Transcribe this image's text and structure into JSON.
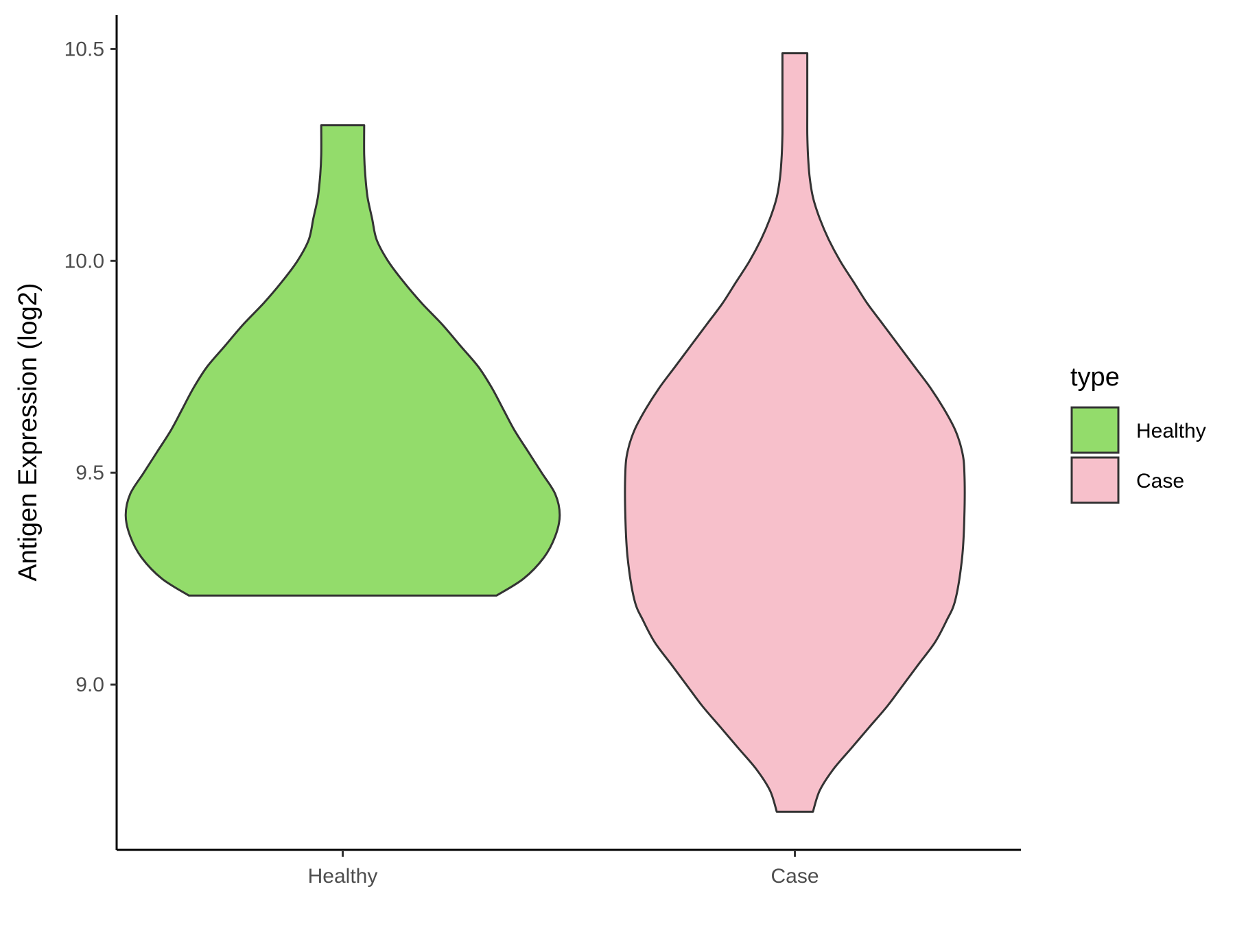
{
  "chart_data": {
    "type": "violin",
    "title": "",
    "xlabel": "",
    "ylabel": "Antigen Expression (log2)",
    "ylim": [
      8.61,
      10.58
    ],
    "yticks": [
      9.0,
      9.5,
      10.0,
      10.5
    ],
    "ytick_labels": [
      "9.0",
      "9.5",
      "10.0",
      "10.5"
    ],
    "categories": [
      "Healthy",
      "Case"
    ],
    "grid": false,
    "legend": {
      "title": "type",
      "placement": "right",
      "entries": [
        {
          "label": "Healthy",
          "color": "#93DC6B"
        },
        {
          "label": "Case",
          "color": "#F7C0CB"
        }
      ]
    },
    "series": [
      {
        "name": "Healthy",
        "color": "#93DC6B",
        "min": 9.21,
        "max": 10.32,
        "density_profile": [
          [
            9.21,
            0.68
          ],
          [
            9.25,
            0.8
          ],
          [
            9.3,
            0.89
          ],
          [
            9.35,
            0.94
          ],
          [
            9.4,
            0.96
          ],
          [
            9.45,
            0.94
          ],
          [
            9.5,
            0.88
          ],
          [
            9.55,
            0.82
          ],
          [
            9.6,
            0.76
          ],
          [
            9.65,
            0.71
          ],
          [
            9.7,
            0.66
          ],
          [
            9.75,
            0.6
          ],
          [
            9.8,
            0.52
          ],
          [
            9.85,
            0.44
          ],
          [
            9.9,
            0.35
          ],
          [
            9.95,
            0.27
          ],
          [
            10.0,
            0.2
          ],
          [
            10.05,
            0.15
          ],
          [
            10.1,
            0.13
          ],
          [
            10.15,
            0.11
          ],
          [
            10.2,
            0.1
          ],
          [
            10.25,
            0.095
          ],
          [
            10.32,
            0.095
          ]
        ]
      },
      {
        "name": "Case",
        "color": "#F7C0CB",
        "min": 8.7,
        "max": 10.49,
        "density_profile": [
          [
            8.7,
            0.08
          ],
          [
            8.75,
            0.11
          ],
          [
            8.8,
            0.17
          ],
          [
            8.85,
            0.25
          ],
          [
            8.9,
            0.33
          ],
          [
            8.95,
            0.41
          ],
          [
            9.0,
            0.48
          ],
          [
            9.05,
            0.55
          ],
          [
            9.1,
            0.62
          ],
          [
            9.15,
            0.67
          ],
          [
            9.2,
            0.71
          ],
          [
            9.3,
            0.74
          ],
          [
            9.4,
            0.75
          ],
          [
            9.5,
            0.75
          ],
          [
            9.55,
            0.74
          ],
          [
            9.6,
            0.71
          ],
          [
            9.65,
            0.66
          ],
          [
            9.7,
            0.6
          ],
          [
            9.75,
            0.53
          ],
          [
            9.8,
            0.46
          ],
          [
            9.85,
            0.39
          ],
          [
            9.9,
            0.32
          ],
          [
            9.95,
            0.26
          ],
          [
            10.0,
            0.2
          ],
          [
            10.05,
            0.15
          ],
          [
            10.1,
            0.11
          ],
          [
            10.15,
            0.08
          ],
          [
            10.2,
            0.065
          ],
          [
            10.25,
            0.058
          ],
          [
            10.3,
            0.055
          ],
          [
            10.35,
            0.055
          ],
          [
            10.4,
            0.055
          ],
          [
            10.49,
            0.055
          ]
        ]
      }
    ]
  }
}
